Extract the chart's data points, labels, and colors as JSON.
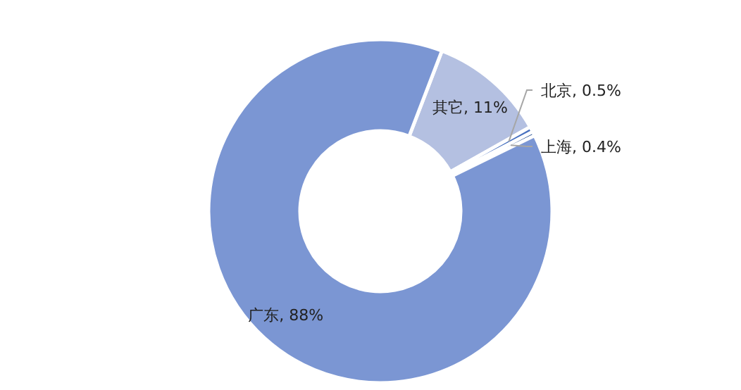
{
  "chart_data": {
    "type": "donut",
    "categories": [
      "其它",
      "北京",
      "上海",
      "广东"
    ],
    "values": [
      11,
      0.5,
      0.4,
      88
    ],
    "value_labels": [
      ", 11%",
      ", 0.5%",
      ", 0.4%",
      ", 88%"
    ],
    "colors": [
      "#b4c0e1",
      "#4a72c0",
      "#2e5597",
      "#7b96d3"
    ]
  }
}
